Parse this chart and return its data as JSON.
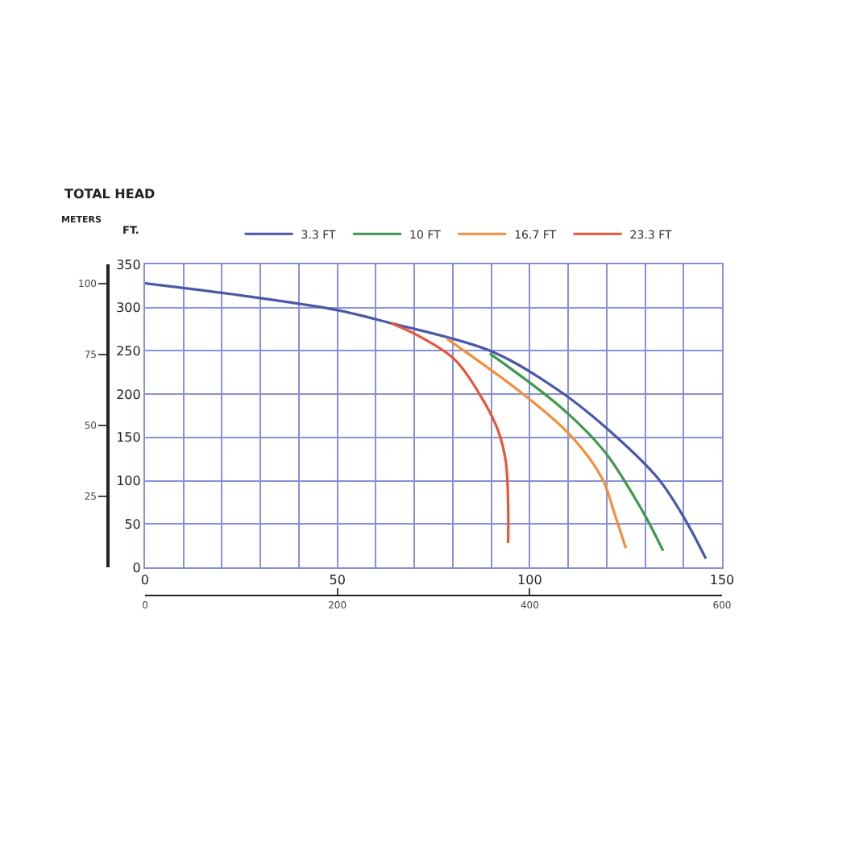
{
  "chart_data": {
    "type": "line",
    "title": "TOTAL HEAD",
    "ylabel": "FT.",
    "y2label": "METERS",
    "series": [
      {
        "name": "3.3 FT",
        "color": "#4a58a8",
        "x": [
          0,
          25,
          50,
          63.9,
          66.7,
          90.3,
          108.3,
          122.2,
          133.3,
          140.3,
          145.8
        ],
        "values": [
          328,
          314,
          297,
          282,
          279,
          249,
          202,
          152,
          103,
          56,
          10
        ]
      },
      {
        "name": "10 FT",
        "color": "#3f9a4c",
        "x": [
          89.6,
          108.3,
          119.4,
          129.2,
          134.7
        ],
        "values": [
          247,
          184,
          134,
          66,
          19
        ]
      },
      {
        "name": "16.7 FT",
        "color": "#f0903c",
        "x": [
          78.5,
          98.6,
          111.1,
          118.8,
          122.2,
          125
        ],
        "values": [
          264,
          199,
          150,
          103,
          60,
          22
        ]
      },
      {
        "name": "23.3 FT",
        "color": "#e8553a",
        "x": [
          63.9,
          70.8,
          80.5,
          87.5,
          91.7,
          93.8,
          94.4,
          94.4
        ],
        "values": [
          282,
          268,
          240,
          196,
          159,
          122,
          72,
          28
        ]
      }
    ],
    "xlim": [
      0,
      150
    ],
    "xticks": [
      0,
      {
        "value": 10,
        "label": null
      },
      {
        "value": 20,
        "label": null
      },
      {
        "value": 30,
        "label": null
      },
      {
        "value": 40,
        "label": null
      },
      50,
      {
        "value": 60,
        "label": null
      },
      {
        "value": 70,
        "label": null
      },
      {
        "value": 80,
        "label": null
      },
      {
        "value": 90,
        "label": null
      },
      100,
      {
        "value": 110,
        "label": null
      },
      {
        "value": 120,
        "label": null
      },
      {
        "value": 130,
        "label": null
      },
      {
        "value": 140,
        "label": null
      },
      150
    ],
    "ylim": [
      0,
      350
    ],
    "yticks": [
      0,
      50,
      100,
      150,
      200,
      250,
      300,
      350
    ],
    "y2lim": [
      0,
      106.7
    ],
    "y2ticks": [
      25,
      50,
      75,
      100
    ],
    "x2lim": [
      0,
      600
    ],
    "x2ticks": [
      0,
      200,
      400,
      600
    ],
    "grid": true,
    "legend": "top",
    "marker": "none",
    "line_style": "solid"
  }
}
